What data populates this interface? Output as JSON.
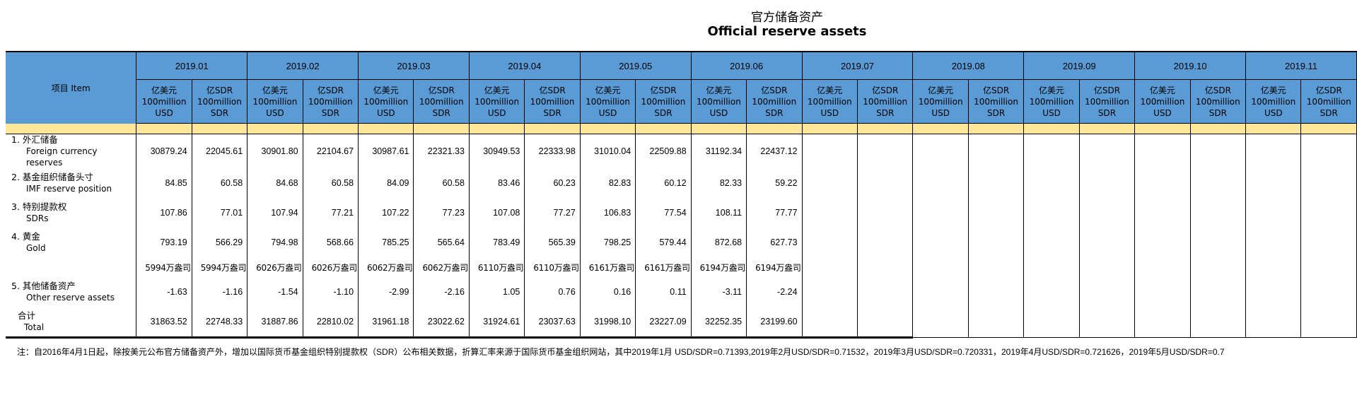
{
  "title": {
    "cn": "官方储备资产",
    "en": "Official reserve assets"
  },
  "header": {
    "item_label": "项目  Item",
    "months": [
      "2019.01",
      "2019.02",
      "2019.03",
      "2019.04",
      "2019.05",
      "2019.06",
      "2019.07",
      "2019.08",
      "2019.09",
      "2019.10",
      "2019.11"
    ],
    "unit_usd": {
      "cn": "亿美元",
      "en1": "100million",
      "en2": "USD"
    },
    "unit_sdr": {
      "cn": "亿SDR",
      "en1": "100million",
      "en2": "SDR"
    }
  },
  "colors": {
    "header_blue": "#5b9bd5",
    "band_yellow": "#ffe699",
    "border": "#000000"
  },
  "rows": [
    {
      "cn": "1.  外汇储备",
      "en": "Foreign currency reserves",
      "values": [
        "30879.24",
        "22045.61",
        "30901.80",
        "22104.67",
        "30987.61",
        "22321.33",
        "30949.53",
        "22333.98",
        "31010.04",
        "22509.88",
        "31192.34",
        "22437.12",
        "",
        "",
        "",
        "",
        "",
        "",
        "",
        "",
        "",
        ""
      ]
    },
    {
      "cn": "2.  基金组织储备头寸",
      "en": "IMF reserve position",
      "values": [
        "84.85",
        "60.58",
        "84.68",
        "60.58",
        "84.09",
        "60.58",
        "83.46",
        "60.23",
        "82.83",
        "60.12",
        "82.33",
        "59.22",
        "",
        "",
        "",
        "",
        "",
        "",
        "",
        "",
        "",
        ""
      ]
    },
    {
      "cn": "3.  特别提款权",
      "en": "SDRs",
      "values": [
        "107.86",
        "77.01",
        "107.94",
        "77.21",
        "107.22",
        "77.23",
        "107.08",
        "77.27",
        "106.83",
        "77.54",
        "108.11",
        "77.77",
        "",
        "",
        "",
        "",
        "",
        "",
        "",
        "",
        "",
        ""
      ]
    },
    {
      "cn": "4.  黄金",
      "en": "Gold",
      "values": [
        "793.19",
        "566.29",
        "794.98",
        "568.66",
        "785.25",
        "565.64",
        "783.49",
        "565.39",
        "798.25",
        "579.44",
        "872.68",
        "627.73",
        "",
        "",
        "",
        "",
        "",
        "",
        "",
        "",
        "",
        ""
      ]
    },
    {
      "cn": "",
      "en": "",
      "values": [
        "5994万盎司",
        "5994万盎司",
        "6026万盎司",
        "6026万盎司",
        "6062万盎司",
        "6062万盎司",
        "6110万盎司",
        "6110万盎司",
        "6161万盎司",
        "6161万盎司",
        "6194万盎司",
        "6194万盎司",
        "",
        "",
        "",
        "",
        "",
        "",
        "",
        "",
        "",
        ""
      ]
    },
    {
      "cn": "5.  其他储备资产",
      "en": "Other reserve assets",
      "values": [
        "-1.63",
        "-1.16",
        "-1.54",
        "-1.10",
        "-2.99",
        "-2.16",
        "1.05",
        "0.76",
        "0.16",
        "0.11",
        "-3.11",
        "-2.24",
        "",
        "",
        "",
        "",
        "",
        "",
        "",
        "",
        "",
        ""
      ]
    },
    {
      "cn": "合计",
      "en": "Total",
      "values": [
        "31863.52",
        "22748.33",
        "31887.86",
        "22810.02",
        "31961.18",
        "23022.62",
        "31924.61",
        "23037.63",
        "31998.10",
        "23227.09",
        "32252.35",
        "23199.60",
        "",
        "",
        "",
        "",
        "",
        "",
        "",
        "",
        "",
        ""
      ]
    }
  ],
  "note": "注：自2016年4月1日起，除按美元公布官方储备资产外，增加以国际货币基金组织特别提款权（SDR）公布相关数据，折算汇率来源于国际货币基金组织网站，其中2019年1月 USD/SDR=0.71393,2019年2月USD/SDR=0.71532，2019年3月USD/SDR=0.720331，2019年4月USD/SDR=0.721626，2019年5月USD/SDR=0.7"
}
